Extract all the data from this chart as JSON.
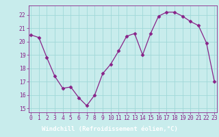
{
  "x": [
    0,
    1,
    2,
    3,
    4,
    5,
    6,
    7,
    8,
    9,
    10,
    11,
    12,
    13,
    14,
    15,
    16,
    17,
    18,
    19,
    20,
    21,
    22,
    23
  ],
  "y": [
    20.5,
    20.3,
    18.8,
    17.4,
    16.5,
    16.6,
    15.8,
    15.2,
    16.0,
    17.6,
    18.3,
    19.3,
    20.4,
    20.6,
    19.0,
    20.6,
    21.9,
    22.2,
    22.2,
    21.9,
    21.5,
    21.2,
    19.9,
    17.0
  ],
  "line_color": "#882288",
  "marker": "D",
  "marker_size": 2.5,
  "bg_color": "#c8ecec",
  "grid_color": "#a0d8d8",
  "xlabel": "Windchill (Refroidissement éolien,°C)",
  "xlabel_bg": "#8844aa",
  "ylabel_ticks": [
    15,
    16,
    17,
    18,
    19,
    20,
    21,
    22
  ],
  "xlim": [
    -0.3,
    23.3
  ],
  "ylim": [
    14.7,
    22.7
  ],
  "xticks": [
    0,
    1,
    2,
    3,
    4,
    5,
    6,
    7,
    8,
    9,
    10,
    11,
    12,
    13,
    14,
    15,
    16,
    17,
    18,
    19,
    20,
    21,
    22,
    23
  ],
  "tick_fontsize": 5.8,
  "xlabel_fontsize": 6.5
}
